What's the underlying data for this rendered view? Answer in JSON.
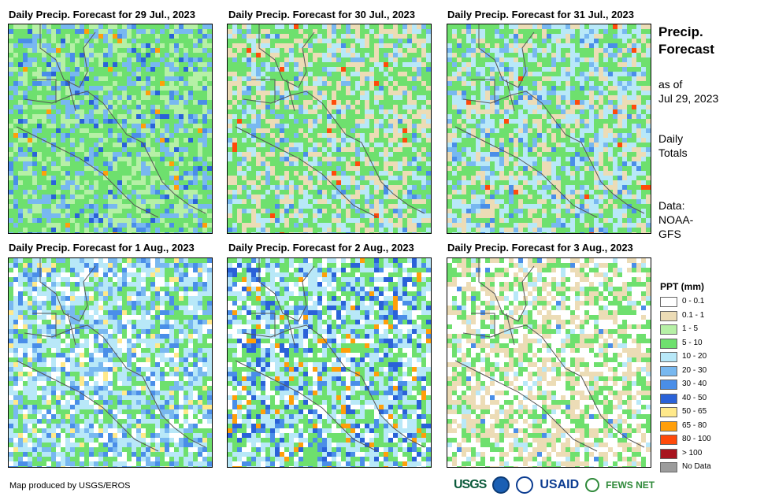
{
  "panels": [
    {
      "title": "Daily Precip. Forecast for 29 Jul., 2023"
    },
    {
      "title": "Daily Precip. Forecast for 30 Jul., 2023"
    },
    {
      "title": "Daily Precip. Forecast for 31 Jul., 2023"
    },
    {
      "title": "Daily Precip. Forecast for 1 Aug., 2023"
    },
    {
      "title": "Daily Precip. Forecast for 2 Aug., 2023"
    },
    {
      "title": "Daily Precip. Forecast for 3 Aug., 2023"
    }
  ],
  "side": {
    "title_line1": "Precip.",
    "title_line2": "Forecast",
    "asof_line1": "as of",
    "asof_line2": "Jul 29, 2023",
    "totals_line1": "Daily",
    "totals_line2": "Totals",
    "data_line1": "Data:",
    "data_line2": "NOAA-",
    "data_line3": "GFS"
  },
  "legend": {
    "title": "PPT (mm)",
    "items": [
      {
        "label": "0 - 0.1",
        "color": "#ffffff"
      },
      {
        "label": "0.1 - 1",
        "color": "#ecdcb6"
      },
      {
        "label": "1 - 5",
        "color": "#b6f0a6"
      },
      {
        "label": "5 - 10",
        "color": "#6ee06e"
      },
      {
        "label": "10 - 20",
        "color": "#b8e8f8"
      },
      {
        "label": "20 - 30",
        "color": "#78b8f0"
      },
      {
        "label": "30 - 40",
        "color": "#4a8ee8"
      },
      {
        "label": "40 - 50",
        "color": "#2a62d8"
      },
      {
        "label": "50 - 65",
        "color": "#ffe98a"
      },
      {
        "label": "65 - 80",
        "color": "#ff9f0a"
      },
      {
        "label": "80 - 100",
        "color": "#ff4a0a"
      },
      {
        "label": "> 100",
        "color": "#a8141e"
      },
      {
        "label": "No Data",
        "color": "#9c9c9c"
      }
    ]
  },
  "footer": {
    "credit": "Map produced by USGS/EROS",
    "logo_usgs": "USGS",
    "logo_usaid": "USAID",
    "logo_fews": "FEWS NET"
  }
}
